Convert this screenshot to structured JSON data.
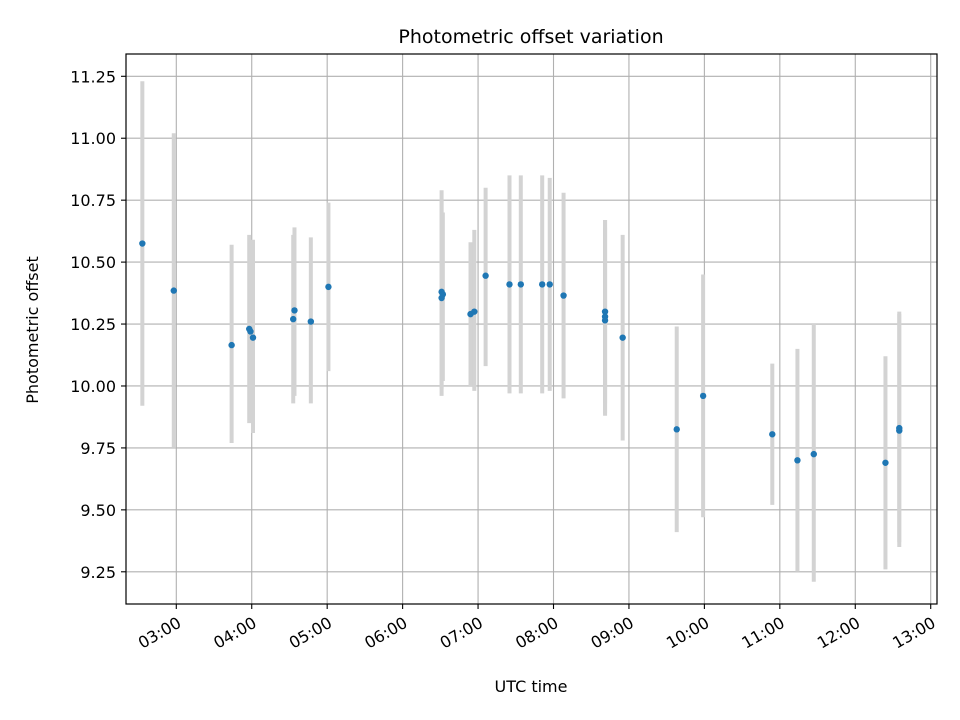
{
  "chart_data": {
    "type": "scatter",
    "title": "Photometric offset variation",
    "xlabel": "UTC time",
    "ylabel": "Photometric offset",
    "x_ticks": [
      "03:00",
      "04:00",
      "05:00",
      "06:00",
      "07:00",
      "08:00",
      "09:00",
      "10:00",
      "11:00",
      "12:00",
      "13:00"
    ],
    "y_ticks": [
      "9.25",
      "9.50",
      "9.75",
      "10.00",
      "10.25",
      "10.50",
      "10.75",
      "11.00",
      "11.25"
    ],
    "xlim": [
      "02:20",
      "13:05"
    ],
    "ylim": [
      9.12,
      11.34
    ],
    "grid": true,
    "marker_color": "#1f77b4",
    "errorbar_color": "#d3d3d3",
    "series": [
      {
        "points": [
          {
            "x": "02:33",
            "y": 10.575,
            "err_low": 9.92,
            "err_high": 11.23
          },
          {
            "x": "02:58",
            "y": 10.385,
            "err_low": 9.75,
            "err_high": 11.02
          },
          {
            "x": "03:44",
            "y": 10.165,
            "err_low": 9.77,
            "err_high": 10.57
          },
          {
            "x": "03:58",
            "y": 10.23,
            "err_low": 9.85,
            "err_high": 10.61
          },
          {
            "x": "03:59",
            "y": 10.22,
            "err_low": 9.86,
            "err_high": 10.58
          },
          {
            "x": "04:01",
            "y": 10.195,
            "err_low": 9.81,
            "err_high": 10.59
          },
          {
            "x": "04:33",
            "y": 10.27,
            "err_low": 9.93,
            "err_high": 10.61
          },
          {
            "x": "04:34",
            "y": 10.305,
            "err_low": 9.96,
            "err_high": 10.64
          },
          {
            "x": "04:47",
            "y": 10.26,
            "err_low": 9.93,
            "err_high": 10.6
          },
          {
            "x": "05:01",
            "y": 10.4,
            "err_low": 10.06,
            "err_high": 10.74
          },
          {
            "x": "06:31",
            "y": 10.38,
            "err_low": 9.99,
            "err_high": 10.79
          },
          {
            "x": "06:31",
            "y": 10.355,
            "err_low": 9.96,
            "err_high": 10.75
          },
          {
            "x": "06:32",
            "y": 10.37,
            "err_low": 10.02,
            "err_high": 10.7
          },
          {
            "x": "06:54",
            "y": 10.29,
            "err_low": 10.0,
            "err_high": 10.58
          },
          {
            "x": "06:57",
            "y": 10.3,
            "err_low": 9.98,
            "err_high": 10.63
          },
          {
            "x": "07:06",
            "y": 10.445,
            "err_low": 10.08,
            "err_high": 10.8
          },
          {
            "x": "07:25",
            "y": 10.41,
            "err_low": 9.97,
            "err_high": 10.85
          },
          {
            "x": "07:34",
            "y": 10.41,
            "err_low": 9.97,
            "err_high": 10.85
          },
          {
            "x": "07:51",
            "y": 10.41,
            "err_low": 9.97,
            "err_high": 10.85
          },
          {
            "x": "07:57",
            "y": 10.41,
            "err_low": 9.98,
            "err_high": 10.84
          },
          {
            "x": "08:08",
            "y": 10.365,
            "err_low": 9.95,
            "err_high": 10.78
          },
          {
            "x": "08:41",
            "y": 10.3,
            "err_low": 9.93,
            "err_high": 10.67
          },
          {
            "x": "08:41",
            "y": 10.28,
            "err_low": 9.88,
            "err_high": 10.67
          },
          {
            "x": "08:41",
            "y": 10.265,
            "err_low": 9.89,
            "err_high": 10.64
          },
          {
            "x": "08:55",
            "y": 10.195,
            "err_low": 9.78,
            "err_high": 10.61
          },
          {
            "x": "09:38",
            "y": 9.825,
            "err_low": 9.41,
            "err_high": 10.24
          },
          {
            "x": "09:59",
            "y": 9.96,
            "err_low": 9.47,
            "err_high": 10.45
          },
          {
            "x": "10:54",
            "y": 9.805,
            "err_low": 9.52,
            "err_high": 10.09
          },
          {
            "x": "11:14",
            "y": 9.7,
            "err_low": 9.25,
            "err_high": 10.15
          },
          {
            "x": "11:27",
            "y": 9.725,
            "err_low": 9.21,
            "err_high": 10.25
          },
          {
            "x": "12:24",
            "y": 9.69,
            "err_low": 9.26,
            "err_high": 10.12
          },
          {
            "x": "12:35",
            "y": 9.82,
            "err_low": 9.35,
            "err_high": 10.29
          },
          {
            "x": "12:35",
            "y": 9.83,
            "err_low": 9.37,
            "err_high": 10.3
          }
        ]
      }
    ]
  }
}
